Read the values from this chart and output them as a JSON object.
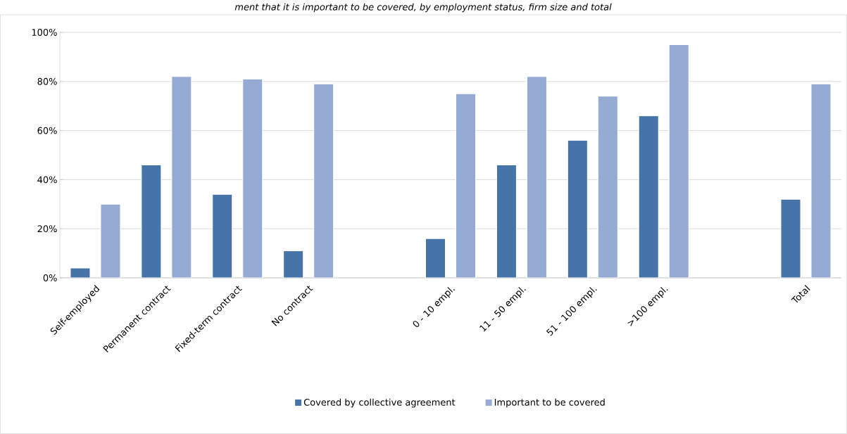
{
  "chart_data": {
    "type": "bar",
    "title": "ment that it is important to be covered, by employment status, firm size and total",
    "categories": [
      "Self-employed",
      "Permanent contract",
      "Fixed-term contract",
      "No contract",
      null,
      "0 - 10  empl.",
      "11 - 50 empl.",
      "51 - 100  empl.",
      ">100  empl.",
      null,
      "Total"
    ],
    "series": [
      {
        "name": "Covered by collective agreement",
        "color": "#4673a8",
        "values": [
          4,
          46,
          34,
          11,
          null,
          16,
          46,
          56,
          66,
          null,
          32
        ]
      },
      {
        "name": "Important to be covered",
        "color": "#95abd3",
        "values": [
          30,
          82,
          81,
          79,
          null,
          75,
          82,
          74,
          95,
          null,
          79
        ]
      }
    ],
    "ylim": [
      0,
      100
    ],
    "yticks": [
      {
        "value": 0,
        "label": "0%"
      },
      {
        "value": 20,
        "label": "20%"
      },
      {
        "value": 40,
        "label": "40%"
      },
      {
        "value": 60,
        "label": "60%"
      },
      {
        "value": 80,
        "label": "80%"
      },
      {
        "value": 100,
        "label": "100%"
      }
    ],
    "grid": "y",
    "legend": "bottom"
  }
}
